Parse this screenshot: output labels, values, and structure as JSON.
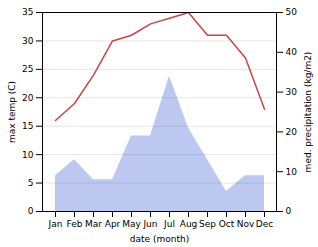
{
  "chart_data": {
    "type": "line",
    "xlabel": "date (month)",
    "ylabel": "max temp (C)",
    "y2label": "med. precipitation (kg/m2)",
    "categories": [
      "Jan",
      "Feb",
      "Mar",
      "Apr",
      "May",
      "Jun",
      "Jul",
      "Aug",
      "Sep",
      "Oct",
      "Nov",
      "Dec"
    ],
    "series": [
      {
        "type": "area",
        "axis": "y2",
        "color": "#bcc8f0",
        "values": [
          9,
          13,
          8,
          8,
          19,
          19,
          34,
          21,
          13,
          5,
          9,
          9
        ]
      },
      {
        "type": "line",
        "color": "#cc4444",
        "values": [
          16,
          19,
          24,
          30,
          31,
          33,
          34,
          35,
          31,
          31,
          27,
          18
        ]
      }
    ],
    "ylim": [
      0,
      35
    ],
    "yticks": [
      0,
      5,
      10,
      15,
      20,
      25,
      30,
      35
    ],
    "y2lim": [
      0,
      50
    ],
    "y2ticks": [
      0,
      10,
      20,
      30,
      40,
      50
    ],
    "grid": true
  }
}
